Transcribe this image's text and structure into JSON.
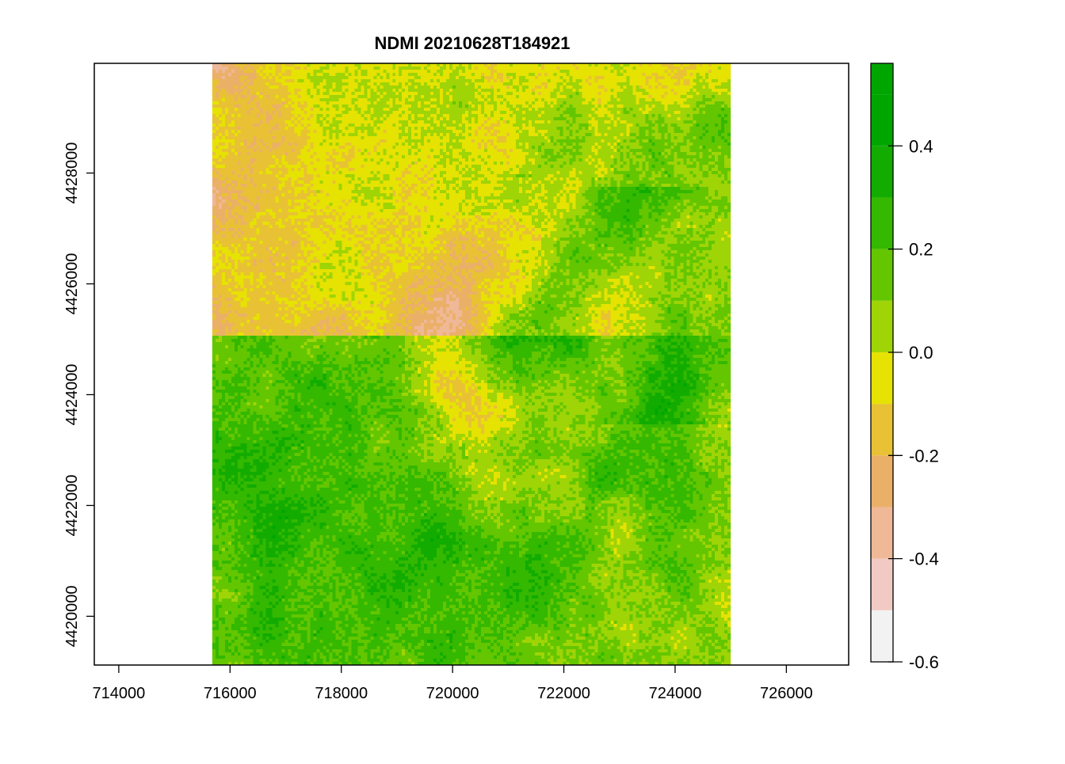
{
  "chart_data": {
    "type": "heatmap",
    "title": "NDMI 20210628T184921",
    "xlabel": "",
    "ylabel": "",
    "xlim": [
      713560,
      727120
    ],
    "ylim": [
      4419120,
      4429980
    ],
    "raster_extent": {
      "xmin": 715680,
      "xmax": 725000,
      "ymin": 4419120,
      "ymax": 4429980
    },
    "x_ticks": [
      714000,
      716000,
      718000,
      720000,
      722000,
      724000,
      726000
    ],
    "x_tick_labels": [
      "714000",
      "716000",
      "718000",
      "720000",
      "722000",
      "724000",
      "726000"
    ],
    "y_ticks": [
      4420000,
      4422000,
      4424000,
      4426000,
      4428000
    ],
    "y_tick_labels": [
      "4420000",
      "4422000",
      "4424000",
      "4426000",
      "4428000"
    ],
    "legend": {
      "position": "right",
      "breaks": [
        -0.6,
        -0.5,
        -0.4,
        -0.3,
        -0.2,
        -0.1,
        0.0,
        0.1,
        0.2,
        0.3,
        0.4,
        0.5,
        0.56
      ],
      "colors": [
        "#f2f2f2",
        "#f1cac4",
        "#efb897",
        "#ebb068",
        "#e8c234",
        "#e6e202",
        "#9fd406",
        "#63c600",
        "#34b800",
        "#12ac00",
        "#00a600",
        "#00a600"
      ],
      "tick_values": [
        -0.6,
        -0.4,
        -0.2,
        0.0,
        0.2,
        0.4
      ],
      "tick_labels": [
        "-0.6",
        "-0.4",
        "-0.2",
        "0.0",
        "0.2",
        "0.4"
      ]
    },
    "grid": false
  }
}
